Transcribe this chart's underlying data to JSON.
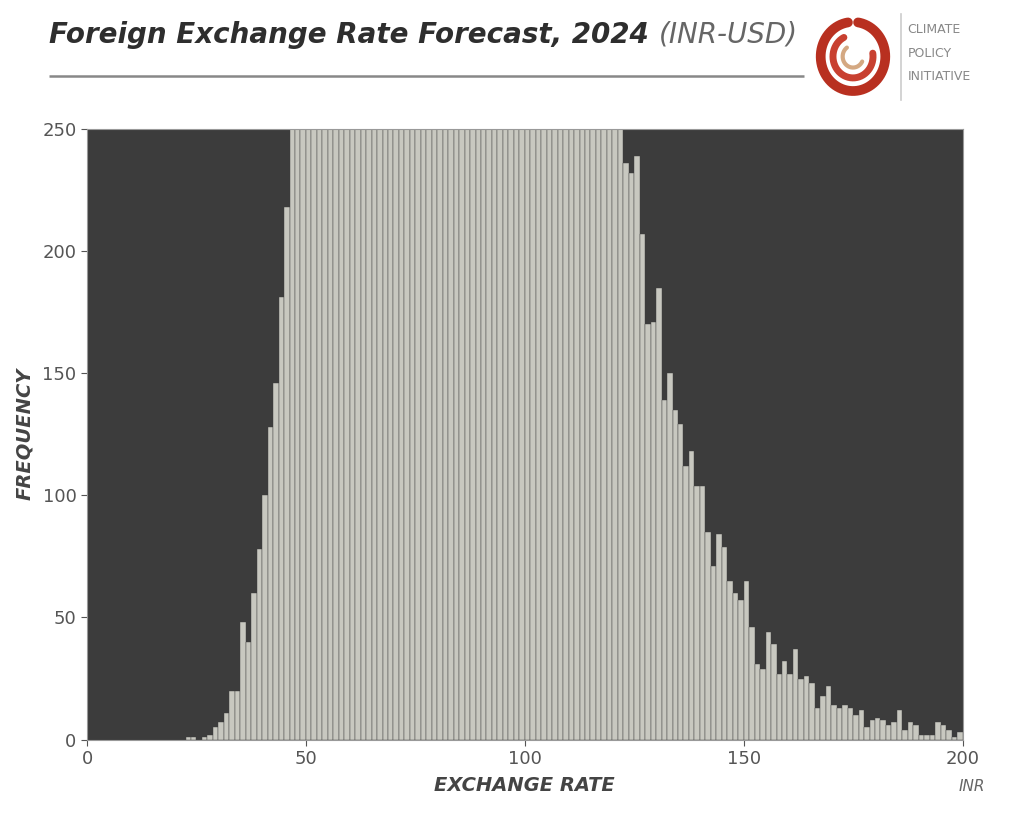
{
  "title_bold": "Foreign Exchange Rate Forecast, 2024",
  "title_italic": "(INR-USD)",
  "xlabel": "EXCHANGE RATE",
  "xlabel_unit": "INR",
  "ylabel": "FREQUENCY",
  "xlim": [
    0,
    200
  ],
  "ylim": [
    0,
    250
  ],
  "xticks": [
    0,
    50,
    100,
    150,
    200
  ],
  "yticks": [
    0,
    50,
    100,
    150,
    200,
    250
  ],
  "plot_bg": "#3c3c3c",
  "fig_bg": "#ffffff",
  "bar_color": "#c8c8c0",
  "bar_edge_color": "#3c3c3c",
  "num_bins": 160,
  "num_samples": 50000,
  "mu_ln": 4.4,
  "sigma_ln": 0.28,
  "seed": 42,
  "title_fontsize": 20,
  "label_fontsize": 14,
  "tick_fontsize": 13,
  "unit_fontsize": 11,
  "cpi_fontsize": 9,
  "separator_color": "#888888",
  "tick_color": "#555555",
  "label_color": "#444444"
}
